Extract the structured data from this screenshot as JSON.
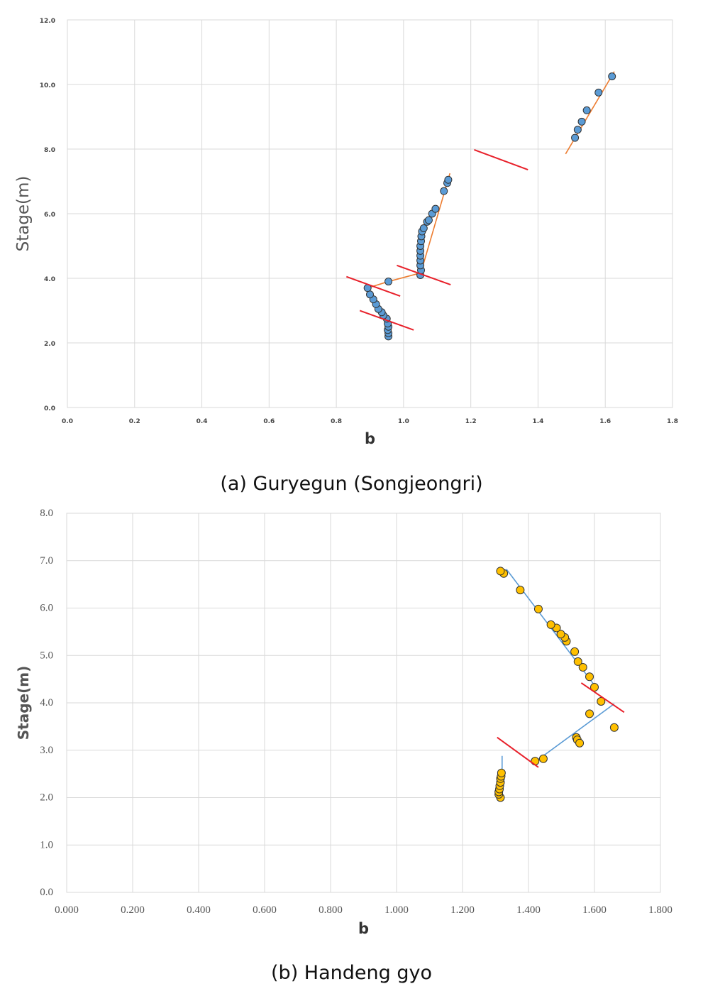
{
  "chart_data": [
    {
      "type": "scatter",
      "xlabel": "b",
      "ylabel": "Stage(m)",
      "xlim": [
        0.0,
        1.8
      ],
      "ylim": [
        0.0,
        12.0
      ],
      "xticks": [
        "0.0",
        "0.2",
        "0.4",
        "0.6",
        "0.8",
        "1.0",
        "1.2",
        "1.4",
        "1.6",
        "1.8"
      ],
      "yticks": [
        "0.0",
        "2.0",
        "4.0",
        "6.0",
        "8.0",
        "10.0",
        "12.0"
      ],
      "grid": true,
      "caption": "(a) Guryegun (Songjeongri)",
      "point_color": "#5b9bd5",
      "fit_color": "#ed7d31",
      "break_color": "#e8202a",
      "points": [
        [
          0.955,
          2.2
        ],
        [
          0.955,
          2.3
        ],
        [
          0.953,
          2.4
        ],
        [
          0.955,
          2.5
        ],
        [
          0.953,
          2.6
        ],
        [
          0.95,
          2.75
        ],
        [
          0.94,
          2.85
        ],
        [
          0.935,
          2.95
        ],
        [
          0.925,
          3.05
        ],
        [
          0.918,
          3.2
        ],
        [
          0.91,
          3.35
        ],
        [
          0.9,
          3.5
        ],
        [
          0.893,
          3.7
        ],
        [
          0.955,
          3.9
        ],
        [
          1.05,
          4.1
        ],
        [
          1.052,
          4.25
        ],
        [
          1.05,
          4.4
        ],
        [
          1.05,
          4.55
        ],
        [
          1.05,
          4.7
        ],
        [
          1.05,
          4.85
        ],
        [
          1.05,
          5.0
        ],
        [
          1.052,
          5.15
        ],
        [
          1.053,
          5.3
        ],
        [
          1.055,
          5.45
        ],
        [
          1.06,
          5.55
        ],
        [
          1.07,
          5.75
        ],
        [
          1.075,
          5.8
        ],
        [
          1.085,
          6.0
        ],
        [
          1.095,
          6.15
        ],
        [
          1.12,
          6.7
        ],
        [
          1.13,
          6.95
        ],
        [
          1.133,
          7.05
        ],
        [
          1.51,
          8.35
        ],
        [
          1.518,
          8.6
        ],
        [
          1.53,
          8.85
        ],
        [
          1.545,
          9.2
        ],
        [
          1.58,
          9.75
        ],
        [
          1.62,
          10.25
        ]
      ],
      "fit_lines": [
        [
          [
            0.893,
            3.7
          ],
          [
            0.955,
            3.9
          ]
        ],
        [
          [
            0.955,
            3.9
          ],
          [
            1.045,
            4.15
          ]
        ],
        [
          [
            1.055,
            4.3
          ],
          [
            1.138,
            7.25
          ]
        ],
        [
          [
            1.482,
            7.85
          ],
          [
            1.627,
            10.4
          ]
        ]
      ],
      "break_lines": [
        [
          [
            0.83,
            4.05
          ],
          [
            0.99,
            3.45
          ]
        ],
        [
          [
            0.87,
            3.0
          ],
          [
            1.03,
            2.4
          ]
        ],
        [
          [
            0.98,
            4.4
          ],
          [
            1.14,
            3.8
          ]
        ],
        [
          [
            1.21,
            7.98
          ],
          [
            1.37,
            7.36
          ]
        ]
      ]
    },
    {
      "type": "scatter",
      "xlabel": "b",
      "ylabel": "Stage(m)",
      "xlim": [
        0.0,
        1.8
      ],
      "ylim": [
        0.0,
        8.0
      ],
      "xticks": [
        "0.000",
        "0.200",
        "0.400",
        "0.600",
        "0.800",
        "1.000",
        "1.200",
        "1.400",
        "1.600",
        "1.800"
      ],
      "yticks": [
        "0.0",
        "1.0",
        "2.0",
        "3.0",
        "4.0",
        "5.0",
        "6.0",
        "7.0",
        "8.0"
      ],
      "grid": true,
      "caption": "(b) Handeng gyo",
      "point_color": "#ffc000",
      "fit_color": "#5b9bd5",
      "break_color": "#e8202a",
      "points": [
        [
          1.315,
          2.0
        ],
        [
          1.31,
          2.07
        ],
        [
          1.31,
          2.12
        ],
        [
          1.312,
          2.18
        ],
        [
          1.313,
          2.25
        ],
        [
          1.315,
          2.32
        ],
        [
          1.315,
          2.4
        ],
        [
          1.317,
          2.45
        ],
        [
          1.318,
          2.52
        ],
        [
          1.42,
          2.77
        ],
        [
          1.445,
          2.82
        ],
        [
          1.545,
          3.27
        ],
        [
          1.548,
          3.22
        ],
        [
          1.555,
          3.15
        ],
        [
          1.585,
          3.77
        ],
        [
          1.62,
          4.03
        ],
        [
          1.66,
          3.48
        ],
        [
          1.6,
          4.33
        ],
        [
          1.585,
          4.55
        ],
        [
          1.565,
          4.75
        ],
        [
          1.55,
          4.87
        ],
        [
          1.54,
          5.08
        ],
        [
          1.515,
          5.3
        ],
        [
          1.51,
          5.38
        ],
        [
          1.498,
          5.45
        ],
        [
          1.485,
          5.58
        ],
        [
          1.468,
          5.65
        ],
        [
          1.43,
          5.98
        ],
        [
          1.375,
          6.38
        ],
        [
          1.325,
          6.73
        ],
        [
          1.315,
          6.78
        ]
      ],
      "fit_lines": [
        [
          [
            1.32,
            2.88
          ],
          [
            1.32,
            2.3
          ]
        ],
        [
          [
            1.425,
            2.78
          ],
          [
            1.66,
            3.98
          ]
        ],
        [
          [
            1.333,
            6.82
          ],
          [
            1.61,
            4.28
          ]
        ]
      ],
      "break_lines": [
        [
          [
            1.305,
            3.27
          ],
          [
            1.43,
            2.64
          ]
        ],
        [
          [
            1.56,
            4.42
          ],
          [
            1.69,
            3.8
          ]
        ]
      ]
    }
  ]
}
